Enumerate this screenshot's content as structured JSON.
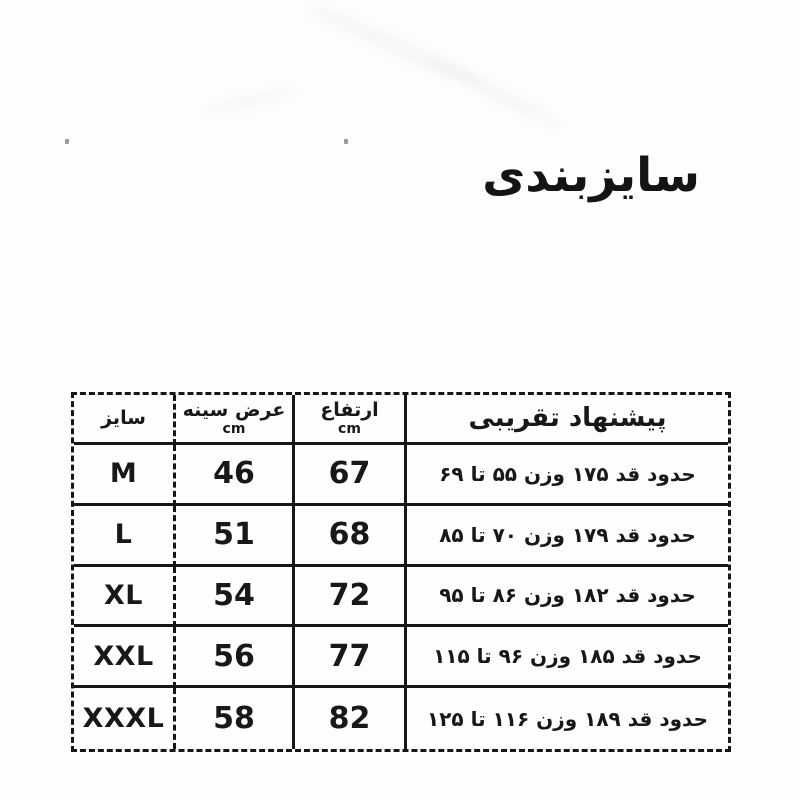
{
  "page": {
    "title": "سایزبندی"
  },
  "colors": {
    "ink": "#161616",
    "background": "#fdfdfb"
  },
  "table": {
    "headers": [
      {
        "label": "سایز",
        "unit": ""
      },
      {
        "label": "عرض سینه",
        "unit": "cm"
      },
      {
        "label": "ارتفاع",
        "unit": "cm"
      },
      {
        "label": "پیشنهاد تقریبی",
        "unit": ""
      }
    ],
    "rows": [
      {
        "size": "M",
        "chest_width_cm": "46",
        "height_cm": "67",
        "suggestion": "حدود قد ۱۷۵ وزن ۵۵ تا ۶۹"
      },
      {
        "size": "L",
        "chest_width_cm": "51",
        "height_cm": "68",
        "suggestion": "حدود قد ۱۷۹ وزن ۷۰ تا ۸۵"
      },
      {
        "size": "XL",
        "chest_width_cm": "54",
        "height_cm": "72",
        "suggestion": "حدود قد ۱۸۲ وزن ۸۶ تا ۹۵"
      },
      {
        "size": "XXL",
        "chest_width_cm": "56",
        "height_cm": "77",
        "suggestion": "حدود قد ۱۸۵ وزن ۹۶ تا ۱۱۵"
      },
      {
        "size": "XXXL",
        "chest_width_cm": "58",
        "height_cm": "82",
        "suggestion": "حدود قد ۱۸۹ وزن ۱۱۶ تا ۱۲۵"
      }
    ]
  }
}
